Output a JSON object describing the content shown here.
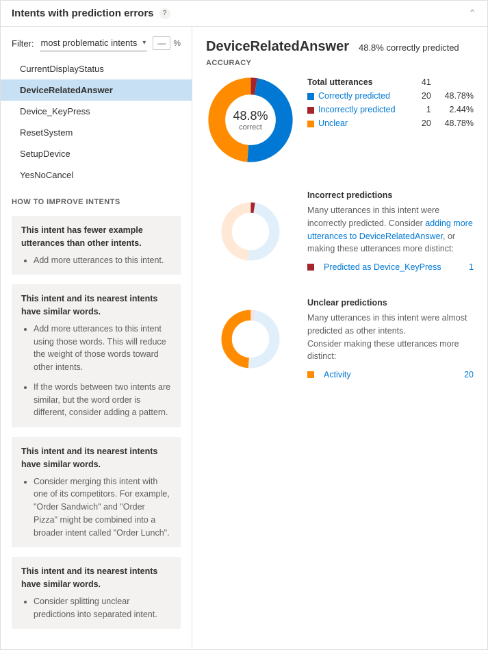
{
  "header": {
    "title": "Intents with prediction errors"
  },
  "filter": {
    "label": "Filter:",
    "selected": "most problematic intents",
    "toggle_dash": "—",
    "toggle_pct": "%"
  },
  "intents": [
    {
      "label": "CurrentDisplayStatus",
      "selected": false
    },
    {
      "label": "DeviceRelatedAnswer",
      "selected": true
    },
    {
      "label": "Device_KeyPress",
      "selected": false
    },
    {
      "label": "ResetSystem",
      "selected": false
    },
    {
      "label": "SetupDevice",
      "selected": false
    },
    {
      "label": "YesNoCancel",
      "selected": false
    }
  ],
  "improve": {
    "heading": "HOW TO IMPROVE INTENTS",
    "cards": [
      {
        "lead": "This intent has fewer example utterances than other intents.",
        "bullets": [
          "Add more utterances to this intent."
        ]
      },
      {
        "lead": "This intent and its nearest intents have similar words.",
        "bullets": [
          "Add more utterances to this intent using those words. This will reduce the weight of those words toward other intents.",
          "If the words between two intents are similar, but the word order is different, consider adding a pattern."
        ]
      },
      {
        "lead": "This intent and its nearest intents have similar words.",
        "bullets": [
          "Consider merging this intent with one of its competitors. For example, \"Order Sandwich\" and \"Order Pizza\" might be combined into a broader intent called \"Order Lunch\"."
        ]
      },
      {
        "lead": "This intent and its nearest intents have similar words.",
        "bullets": [
          "Consider splitting unclear predictions into separated intent."
        ]
      }
    ]
  },
  "detail": {
    "title": "DeviceRelatedAnswer",
    "subtitle": "48.8% correctly predicted",
    "accuracy_label": "ACCURACY",
    "main_chart": {
      "center_big": "48.8%",
      "center_small": "correct",
      "colors": {
        "correct": "#0078d4",
        "incorrect": "#a4262c",
        "unclear": "#ff8c00"
      },
      "slices": {
        "correct": 48.78,
        "incorrect": 2.44,
        "unclear": 48.78
      },
      "legend_title": "Total utterances",
      "total": "41",
      "rows": [
        {
          "label": "Correctly predicted",
          "color": "#0078d4",
          "count": "20",
          "pct": "48.78%"
        },
        {
          "label": "Incorrectly predicted",
          "color": "#a4262c",
          "count": "1",
          "pct": "2.44%"
        },
        {
          "label": "Unclear",
          "color": "#ff8c00",
          "count": "20",
          "pct": "48.78%"
        }
      ]
    },
    "incorrect_block": {
      "title": "Incorrect predictions",
      "desc_pre": "Many utterances in this intent were incorrectly predicted. Consider ",
      "desc_link": "adding more utterances to DeviceRelatedAnswer",
      "desc_post": ", or making these utterances more distinct:",
      "chart": {
        "highlight_color": "#a4262c",
        "faint_correct": "#e1effa",
        "faint_unclear": "#ffe9d6",
        "slices": {
          "correct": 48.78,
          "incorrect": 2.44,
          "unclear": 48.78
        }
      },
      "rows": [
        {
          "color": "#a4262c",
          "label": "Predicted as Device_KeyPress",
          "count": "1"
        }
      ]
    },
    "unclear_block": {
      "title": "Unclear predictions",
      "desc": "Many utterances in this intent were almost predicted as other intents.\nConsider making these utterances more distinct:",
      "chart": {
        "highlight_color": "#ff8c00",
        "faint_correct": "#e1effa",
        "faint_incorrect": "#f5e2e3",
        "slices": {
          "correct": 48.78,
          "incorrect": 2.44,
          "unclear": 48.78
        }
      },
      "rows": [
        {
          "color": "#ff8c00",
          "label": "Activity",
          "count": "20"
        }
      ]
    }
  }
}
